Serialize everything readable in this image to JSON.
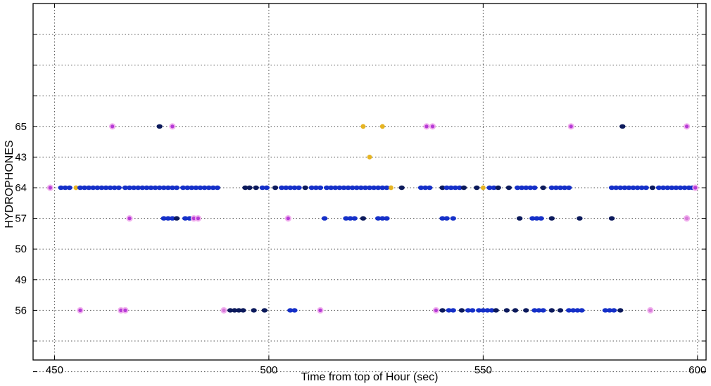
{
  "chart_data": {
    "type": "scatter",
    "title": "",
    "xlabel": "Time from top of Hour (sec)",
    "ylabel": "HYDROPHONES",
    "xlim": [
      445,
      602
    ],
    "x_ticks": [
      "450",
      "500",
      "550",
      "600"
    ],
    "y_tick_labels": [
      "",
      "",
      "",
      "65",
      "43",
      "64",
      "57",
      "50",
      "49",
      "56",
      "",
      ""
    ],
    "grid": true,
    "colors": {
      "navy": "#0c1a5c",
      "blue": "#1530c8",
      "magenta": "#b53ad6",
      "pink": "#f0a8ec",
      "yellow": "#e6b422",
      "grid": "#555555"
    },
    "series": [
      {
        "row": "65",
        "detections": [
          {
            "x": 463.5,
            "c": "magenta"
          },
          {
            "x": 474.5,
            "c": "navy"
          },
          {
            "x": 477.5,
            "c": "magenta"
          },
          {
            "x": 522.0,
            "c": "yellow"
          },
          {
            "x": 526.5,
            "c": "yellow"
          },
          {
            "x": 536.8,
            "c": "magenta"
          },
          {
            "x": 538.2,
            "c": "magenta"
          },
          {
            "x": 570.5,
            "c": "magenta"
          },
          {
            "x": 582.5,
            "c": "navy"
          },
          {
            "x": 597.5,
            "c": "magenta"
          }
        ]
      },
      {
        "row": "43",
        "detections": [
          {
            "x": 523.5,
            "c": "yellow"
          }
        ]
      },
      {
        "row": "64",
        "detections": [
          {
            "x": 449.0,
            "c": "magenta"
          },
          {
            "x": 451.5,
            "c": "blue"
          },
          {
            "x": 452.5,
            "c": "blue"
          },
          {
            "x": 453.5,
            "c": "blue"
          },
          {
            "x": 455.0,
            "c": "yellow"
          },
          {
            "x": 456.0,
            "c": "blue"
          },
          {
            "x": 457.0,
            "c": "blue"
          },
          {
            "x": 458.0,
            "c": "blue"
          },
          {
            "x": 459.0,
            "c": "blue"
          },
          {
            "x": 460.0,
            "c": "blue"
          },
          {
            "x": 461.0,
            "c": "blue"
          },
          {
            "x": 462.0,
            "c": "blue"
          },
          {
            "x": 463.0,
            "c": "blue"
          },
          {
            "x": 464.0,
            "c": "blue"
          },
          {
            "x": 465.0,
            "c": "blue"
          },
          {
            "x": 466.5,
            "c": "blue"
          },
          {
            "x": 467.5,
            "c": "blue"
          },
          {
            "x": 468.5,
            "c": "blue"
          },
          {
            "x": 469.5,
            "c": "blue"
          },
          {
            "x": 470.5,
            "c": "blue"
          },
          {
            "x": 471.5,
            "c": "blue"
          },
          {
            "x": 472.5,
            "c": "blue"
          },
          {
            "x": 473.5,
            "c": "blue"
          },
          {
            "x": 474.5,
            "c": "blue"
          },
          {
            "x": 475.5,
            "c": "blue"
          },
          {
            "x": 476.5,
            "c": "blue"
          },
          {
            "x": 477.5,
            "c": "blue"
          },
          {
            "x": 478.5,
            "c": "blue"
          },
          {
            "x": 480.0,
            "c": "blue"
          },
          {
            "x": 481.0,
            "c": "blue"
          },
          {
            "x": 482.0,
            "c": "blue"
          },
          {
            "x": 483.0,
            "c": "blue"
          },
          {
            "x": 484.0,
            "c": "blue"
          },
          {
            "x": 485.0,
            "c": "blue"
          },
          {
            "x": 486.0,
            "c": "blue"
          },
          {
            "x": 487.0,
            "c": "blue"
          },
          {
            "x": 488.0,
            "c": "blue"
          },
          {
            "x": 494.5,
            "c": "navy"
          },
          {
            "x": 495.5,
            "c": "navy"
          },
          {
            "x": 497.0,
            "c": "navy"
          },
          {
            "x": 498.5,
            "c": "blue"
          },
          {
            "x": 499.5,
            "c": "blue"
          },
          {
            "x": 501.5,
            "c": "navy"
          },
          {
            "x": 503.0,
            "c": "blue"
          },
          {
            "x": 504.0,
            "c": "blue"
          },
          {
            "x": 505.0,
            "c": "blue"
          },
          {
            "x": 506.0,
            "c": "blue"
          },
          {
            "x": 507.0,
            "c": "blue"
          },
          {
            "x": 508.5,
            "c": "navy"
          },
          {
            "x": 510.0,
            "c": "blue"
          },
          {
            "x": 511.0,
            "c": "blue"
          },
          {
            "x": 512.0,
            "c": "blue"
          },
          {
            "x": 513.5,
            "c": "blue"
          },
          {
            "x": 514.5,
            "c": "blue"
          },
          {
            "x": 515.5,
            "c": "blue"
          },
          {
            "x": 516.5,
            "c": "blue"
          },
          {
            "x": 517.5,
            "c": "blue"
          },
          {
            "x": 518.5,
            "c": "blue"
          },
          {
            "x": 519.5,
            "c": "blue"
          },
          {
            "x": 520.5,
            "c": "blue"
          },
          {
            "x": 521.5,
            "c": "blue"
          },
          {
            "x": 522.5,
            "c": "blue"
          },
          {
            "x": 523.5,
            "c": "blue"
          },
          {
            "x": 524.5,
            "c": "blue"
          },
          {
            "x": 525.5,
            "c": "blue"
          },
          {
            "x": 526.5,
            "c": "blue"
          },
          {
            "x": 527.5,
            "c": "blue"
          },
          {
            "x": 528.5,
            "c": "yellow"
          },
          {
            "x": 531.0,
            "c": "navy"
          },
          {
            "x": 535.5,
            "c": "blue"
          },
          {
            "x": 536.5,
            "c": "blue"
          },
          {
            "x": 537.5,
            "c": "blue"
          },
          {
            "x": 540.5,
            "c": "navy"
          },
          {
            "x": 541.5,
            "c": "blue"
          },
          {
            "x": 542.5,
            "c": "blue"
          },
          {
            "x": 543.5,
            "c": "blue"
          },
          {
            "x": 544.5,
            "c": "blue"
          },
          {
            "x": 545.5,
            "c": "navy"
          },
          {
            "x": 548.5,
            "c": "navy"
          },
          {
            "x": 550.0,
            "c": "yellow"
          },
          {
            "x": 551.5,
            "c": "blue"
          },
          {
            "x": 552.5,
            "c": "blue"
          },
          {
            "x": 553.5,
            "c": "navy"
          },
          {
            "x": 556.0,
            "c": "navy"
          },
          {
            "x": 558.0,
            "c": "blue"
          },
          {
            "x": 559.0,
            "c": "blue"
          },
          {
            "x": 560.0,
            "c": "blue"
          },
          {
            "x": 561.0,
            "c": "blue"
          },
          {
            "x": 562.0,
            "c": "blue"
          },
          {
            "x": 564.0,
            "c": "navy"
          },
          {
            "x": 566.0,
            "c": "blue"
          },
          {
            "x": 567.0,
            "c": "blue"
          },
          {
            "x": 568.0,
            "c": "blue"
          },
          {
            "x": 569.0,
            "c": "blue"
          },
          {
            "x": 570.0,
            "c": "blue"
          },
          {
            "x": 580.0,
            "c": "blue"
          },
          {
            "x": 581.0,
            "c": "blue"
          },
          {
            "x": 582.0,
            "c": "blue"
          },
          {
            "x": 583.0,
            "c": "blue"
          },
          {
            "x": 584.0,
            "c": "blue"
          },
          {
            "x": 585.0,
            "c": "blue"
          },
          {
            "x": 586.0,
            "c": "blue"
          },
          {
            "x": 587.0,
            "c": "blue"
          },
          {
            "x": 588.0,
            "c": "blue"
          },
          {
            "x": 589.5,
            "c": "navy"
          },
          {
            "x": 591.0,
            "c": "blue"
          },
          {
            "x": 592.0,
            "c": "blue"
          },
          {
            "x": 593.0,
            "c": "blue"
          },
          {
            "x": 594.0,
            "c": "blue"
          },
          {
            "x": 595.0,
            "c": "blue"
          },
          {
            "x": 596.0,
            "c": "blue"
          },
          {
            "x": 597.0,
            "c": "blue"
          },
          {
            "x": 598.0,
            "c": "blue"
          },
          {
            "x": 598.8,
            "c": "blue"
          },
          {
            "x": 599.5,
            "c": "magenta"
          }
        ]
      },
      {
        "row": "57",
        "detections": [
          {
            "x": 467.5,
            "c": "magenta"
          },
          {
            "x": 475.5,
            "c": "blue"
          },
          {
            "x": 476.5,
            "c": "blue"
          },
          {
            "x": 477.5,
            "c": "blue"
          },
          {
            "x": 478.5,
            "c": "navy"
          },
          {
            "x": 480.5,
            "c": "blue"
          },
          {
            "x": 481.5,
            "c": "blue"
          },
          {
            "x": 482.5,
            "c": "magenta"
          },
          {
            "x": 483.5,
            "c": "magenta"
          },
          {
            "x": 504.5,
            "c": "magenta"
          },
          {
            "x": 513.0,
            "c": "blue"
          },
          {
            "x": 518.0,
            "c": "blue"
          },
          {
            "x": 519.0,
            "c": "blue"
          },
          {
            "x": 520.0,
            "c": "blue"
          },
          {
            "x": 522.0,
            "c": "navy"
          },
          {
            "x": 525.5,
            "c": "blue"
          },
          {
            "x": 526.5,
            "c": "blue"
          },
          {
            "x": 527.5,
            "c": "blue"
          },
          {
            "x": 540.5,
            "c": "blue"
          },
          {
            "x": 541.5,
            "c": "blue"
          },
          {
            "x": 543.0,
            "c": "blue"
          },
          {
            "x": 558.5,
            "c": "navy"
          },
          {
            "x": 561.5,
            "c": "blue"
          },
          {
            "x": 562.5,
            "c": "blue"
          },
          {
            "x": 563.5,
            "c": "blue"
          },
          {
            "x": 566.0,
            "c": "navy"
          },
          {
            "x": 572.5,
            "c": "navy"
          },
          {
            "x": 580.0,
            "c": "navy"
          },
          {
            "x": 597.5,
            "c": "pink"
          }
        ]
      },
      {
        "row": "56",
        "detections": [
          {
            "x": 456.0,
            "c": "magenta"
          },
          {
            "x": 465.5,
            "c": "magenta"
          },
          {
            "x": 466.5,
            "c": "magenta"
          },
          {
            "x": 489.5,
            "c": "pink"
          },
          {
            "x": 491.0,
            "c": "navy"
          },
          {
            "x": 492.0,
            "c": "navy"
          },
          {
            "x": 493.0,
            "c": "navy"
          },
          {
            "x": 494.0,
            "c": "navy"
          },
          {
            "x": 496.5,
            "c": "navy"
          },
          {
            "x": 499.0,
            "c": "navy"
          },
          {
            "x": 505.0,
            "c": "blue"
          },
          {
            "x": 506.0,
            "c": "blue"
          },
          {
            "x": 512.0,
            "c": "magenta"
          },
          {
            "x": 539.0,
            "c": "magenta"
          },
          {
            "x": 540.5,
            "c": "navy"
          },
          {
            "x": 542.0,
            "c": "blue"
          },
          {
            "x": 543.0,
            "c": "blue"
          },
          {
            "x": 545.0,
            "c": "navy"
          },
          {
            "x": 546.5,
            "c": "blue"
          },
          {
            "x": 547.5,
            "c": "blue"
          },
          {
            "x": 549.0,
            "c": "blue"
          },
          {
            "x": 550.0,
            "c": "blue"
          },
          {
            "x": 551.0,
            "c": "blue"
          },
          {
            "x": 552.0,
            "c": "blue"
          },
          {
            "x": 553.0,
            "c": "navy"
          },
          {
            "x": 555.5,
            "c": "navy"
          },
          {
            "x": 557.5,
            "c": "navy"
          },
          {
            "x": 560.0,
            "c": "navy"
          },
          {
            "x": 562.0,
            "c": "blue"
          },
          {
            "x": 563.0,
            "c": "blue"
          },
          {
            "x": 564.0,
            "c": "blue"
          },
          {
            "x": 566.0,
            "c": "navy"
          },
          {
            "x": 568.0,
            "c": "navy"
          },
          {
            "x": 570.0,
            "c": "blue"
          },
          {
            "x": 571.0,
            "c": "blue"
          },
          {
            "x": 572.0,
            "c": "blue"
          },
          {
            "x": 573.0,
            "c": "blue"
          },
          {
            "x": 578.5,
            "c": "blue"
          },
          {
            "x": 579.5,
            "c": "blue"
          },
          {
            "x": 580.5,
            "c": "blue"
          },
          {
            "x": 582.0,
            "c": "navy"
          },
          {
            "x": 589.0,
            "c": "pink"
          }
        ]
      }
    ]
  }
}
